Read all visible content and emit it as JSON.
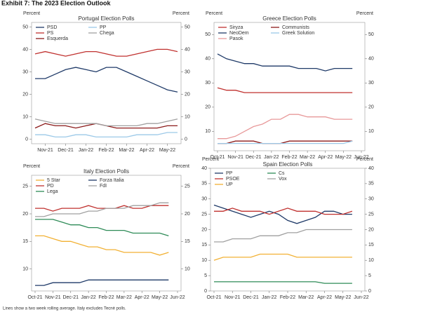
{
  "title": "Exhibit 7: The 2023 Election Outlook",
  "note": "Lines show a two week rolling average. Italy excludes Tecnè polls.",
  "chart_data": [
    {
      "type": "line",
      "title": "Portugal Election Polls",
      "ylabel": "Percent",
      "y2label": "Percent",
      "categories": [
        null,
        "Nov-21",
        null,
        "Dec-21",
        null,
        "Jan-22",
        null,
        "Feb-22",
        null,
        "Mar-22",
        null,
        "Apr-22",
        null,
        "May-22",
        null
      ],
      "ylim": [
        -2,
        52
      ],
      "yticks": [
        0,
        10,
        20,
        30,
        40,
        50
      ],
      "y2lim": [
        -2,
        52
      ],
      "y2ticks": [
        0,
        10,
        20,
        30,
        40,
        50
      ],
      "series": [
        {
          "name": "PSD",
          "color": "#1f3a68",
          "values": [
            27,
            27,
            29,
            31,
            32,
            31,
            30,
            32,
            32,
            30,
            28,
            26,
            24,
            22,
            21
          ]
        },
        {
          "name": "PS",
          "color": "#c0312f",
          "values": [
            38,
            39,
            38,
            37,
            38,
            39,
            39,
            38,
            37,
            37,
            38,
            39,
            40,
            40,
            39
          ]
        },
        {
          "name": "Esquerda",
          "color": "#8b1a1a",
          "values": [
            5,
            7,
            6,
            6,
            5,
            6,
            7,
            6,
            5,
            5,
            5,
            5,
            5,
            6,
            6
          ]
        },
        {
          "name": "PP",
          "color": "#9cc9e8",
          "values": [
            2,
            2,
            1,
            1,
            2,
            2,
            1,
            1,
            1,
            1,
            2,
            2,
            2,
            3,
            3
          ]
        },
        {
          "name": "Chega",
          "color": "#a0a0a0",
          "values": [
            9,
            8,
            7,
            7,
            7,
            7,
            7,
            6,
            6,
            6,
            6,
            7,
            7,
            8,
            9
          ]
        }
      ]
    },
    {
      "type": "line",
      "title": "Greece Election Polls",
      "ylabel": "Percent",
      "y2label": "Percent",
      "categories": [
        "Oct-21",
        null,
        "Nov-21",
        null,
        "Dec-21",
        null,
        "Jan-22",
        null,
        "Feb-22",
        null,
        "Mar-22",
        null,
        "Apr-22",
        null,
        "May-22",
        null,
        "Jun-22"
      ],
      "ylim": [
        2,
        55
      ],
      "yticks": [
        10,
        20,
        30,
        40,
        50
      ],
      "y2lim": [
        2,
        55
      ],
      "y2ticks": [
        10,
        20,
        30,
        40,
        50
      ],
      "series": [
        {
          "name": "Siryza",
          "color": "#c0312f",
          "values": [
            28,
            27,
            27,
            26,
            26,
            26,
            26,
            26,
            26,
            26,
            26,
            26,
            26,
            26,
            26,
            26,
            null
          ]
        },
        {
          "name": "NeoDem",
          "color": "#1f3a68",
          "values": [
            42,
            40,
            39,
            38,
            38,
            37,
            37,
            37,
            37,
            36,
            36,
            36,
            35,
            36,
            36,
            36,
            null
          ]
        },
        {
          "name": "Pasok",
          "color": "#e8999a",
          "values": [
            7,
            7,
            8,
            10,
            12,
            13,
            15,
            15,
            17,
            17,
            16,
            16,
            16,
            15,
            15,
            15,
            null
          ]
        },
        {
          "name": "Communists",
          "color": "#8b1a1a",
          "values": [
            5,
            5,
            6,
            6,
            6,
            5,
            5,
            5,
            6,
            6,
            6,
            6,
            6,
            6,
            6,
            6,
            null
          ]
        },
        {
          "name": "Greek Solution",
          "color": "#9cc9e8",
          "values": [
            5,
            5,
            5,
            5,
            5,
            5,
            5,
            5,
            5,
            5,
            5,
            5,
            5,
            5,
            5,
            6,
            null
          ]
        }
      ]
    },
    {
      "type": "line",
      "title": "Italy Election Polls",
      "ylabel": "Percent",
      "y2label": "Percent",
      "categories": [
        "Oct-21",
        null,
        "Nov-21",
        null,
        "Dec-21",
        null,
        "Jan-22",
        null,
        "Feb-22",
        null,
        "Mar-22",
        null,
        "Apr-22",
        null,
        "May-22",
        null,
        "Jun-22"
      ],
      "ylim": [
        6,
        27
      ],
      "yticks": [
        10,
        15,
        20,
        25
      ],
      "y2lim": [
        6,
        27
      ],
      "y2ticks": [
        10,
        15,
        20,
        25
      ],
      "series": [
        {
          "name": "5 Star",
          "color": "#f2b134",
          "values": [
            16,
            16,
            15.5,
            15,
            15,
            14.5,
            14,
            14,
            13.5,
            13.5,
            13,
            13,
            13,
            13,
            12.5,
            13,
            null
          ]
        },
        {
          "name": "PD",
          "color": "#c0312f",
          "values": [
            21,
            21,
            20.5,
            21,
            21,
            21,
            21.5,
            21,
            21,
            21,
            21.5,
            21,
            21,
            21.5,
            21.5,
            21.5,
            null
          ]
        },
        {
          "name": "Lega",
          "color": "#2e8b57",
          "values": [
            19,
            19,
            19,
            18.5,
            18,
            18,
            17.5,
            17.5,
            17,
            17,
            17,
            16.5,
            16.5,
            16.5,
            16.5,
            16,
            null
          ]
        },
        {
          "name": "Forza Italia",
          "color": "#1f3a68",
          "values": [
            7,
            7,
            7.5,
            7.5,
            7.5,
            7.5,
            8,
            8,
            8,
            8,
            8,
            8,
            8,
            8,
            8,
            8,
            null
          ]
        },
        {
          "name": "FdI",
          "color": "#a0a0a0",
          "values": [
            19.5,
            19.5,
            20,
            20,
            20,
            20,
            20.5,
            20.5,
            21,
            21,
            21,
            21.5,
            21.5,
            21.5,
            22,
            22,
            null
          ]
        }
      ]
    },
    {
      "type": "line",
      "title": "Spain Election Polls",
      "ylabel": "Percent",
      "y2label": "Percent",
      "categories": [
        "Oct-21",
        null,
        "Nov-21",
        null,
        "Dec-21",
        null,
        "Jan-22",
        null,
        "Feb-22",
        null,
        "Mar-22",
        null,
        "Apr-22",
        null,
        "May-22",
        null,
        "Jun-22"
      ],
      "ylim": [
        0,
        40
      ],
      "yticks": [
        0,
        5,
        10,
        15,
        20,
        25,
        30,
        35,
        40
      ],
      "y2lim": [
        0,
        40
      ],
      "y2ticks": [
        0,
        5,
        10,
        15,
        20,
        25,
        30,
        35,
        40
      ],
      "series": [
        {
          "name": "PP",
          "color": "#1f3a68",
          "values": [
            28,
            27,
            26,
            25,
            24,
            25,
            26,
            25,
            23,
            22,
            23,
            24,
            26,
            26,
            25,
            25,
            null
          ]
        },
        {
          "name": "PSOE",
          "color": "#c0312f",
          "values": [
            26,
            26,
            27,
            26,
            26,
            26,
            25,
            26,
            27,
            26,
            26,
            26,
            25,
            25,
            25,
            26,
            null
          ]
        },
        {
          "name": "UP",
          "color": "#f2b134",
          "values": [
            10,
            11,
            11,
            11,
            11,
            12,
            12,
            12,
            12,
            11,
            11,
            11,
            11,
            11,
            11,
            11,
            null
          ]
        },
        {
          "name": "Cs",
          "color": "#2e8b57",
          "values": [
            3,
            3,
            3,
            3,
            3,
            3,
            3,
            3,
            3,
            3,
            3,
            3,
            2.5,
            2.5,
            2.5,
            2.5,
            null
          ]
        },
        {
          "name": "Vox",
          "color": "#a0a0a0",
          "values": [
            16,
            16,
            17,
            17,
            17,
            18,
            18,
            18,
            19,
            19,
            20,
            20,
            20,
            20,
            20,
            20,
            null
          ]
        }
      ]
    }
  ]
}
